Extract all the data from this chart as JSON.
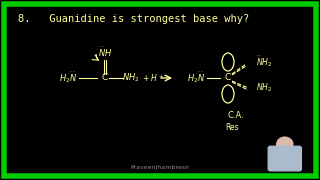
{
  "background_color": "#000000",
  "border_color": "#00cc00",
  "border_linewidth": 4,
  "title_text": "8.   Guanidine is strongest base why?",
  "title_color": "#ffff99",
  "title_fontsize": 7.5,
  "chem_color": "#ffff99",
  "watermark_text": "PraveenJhambresir",
  "watermark_color": "#888888",
  "watermark_fontsize": 4.5,
  "ca_text": "C.A.",
  "res_text": "Res",
  "fig_width": 3.2,
  "fig_height": 1.8,
  "dpi": 100
}
